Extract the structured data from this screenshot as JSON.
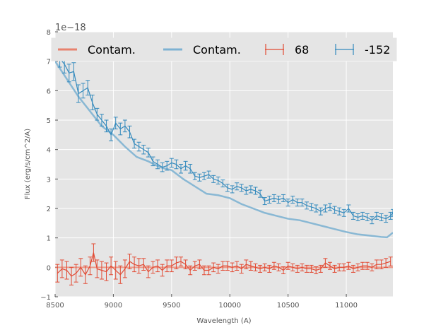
{
  "chart_data": {
    "type": "line",
    "title": "",
    "xlabel": "Wavelength (A)",
    "ylabel": "Flux (erg/s/cm^2/A)",
    "offset_text": "1e−18",
    "xlim": [
      8500,
      11400
    ],
    "ylim": [
      -1,
      8
    ],
    "xticks": [
      8500,
      9000,
      9500,
      10000,
      10500,
      11000
    ],
    "yticks": [
      -1,
      0,
      1,
      2,
      3,
      4,
      5,
      6,
      7,
      8
    ],
    "grid": true,
    "legend_position": "top",
    "legend": [
      {
        "label": "Contam.",
        "kind": "line",
        "color": "#e8826e"
      },
      {
        "label": "Contam.",
        "kind": "line",
        "color": "#7eb2d2"
      },
      {
        "label": "68",
        "kind": "errorbar",
        "color": "#e24a33"
      },
      {
        "label": "-152",
        "kind": "errorbar",
        "color": "#348abd"
      }
    ],
    "series": [
      {
        "name": "Contam.",
        "role": "contam_red",
        "color": "#e8826e",
        "x": [
          8500,
          11400
        ],
        "y": [
          0.0,
          0.0
        ]
      },
      {
        "name": "Contam.",
        "role": "contam_blue",
        "color": "#7eb2d2",
        "x": [
          8500,
          8600,
          8700,
          8800,
          8900,
          9000,
          9100,
          9200,
          9300,
          9400,
          9500,
          9600,
          9700,
          9800,
          9900,
          10000,
          10100,
          10200,
          10300,
          10400,
          10500,
          10600,
          10700,
          10800,
          10900,
          11000,
          11100,
          11200,
          11300,
          11350,
          11400
        ],
        "y": [
          7.0,
          6.4,
          5.8,
          5.3,
          4.8,
          4.5,
          4.1,
          3.75,
          3.6,
          3.4,
          3.3,
          3.0,
          2.75,
          2.5,
          2.45,
          2.35,
          2.15,
          2.0,
          1.85,
          1.75,
          1.65,
          1.6,
          1.5,
          1.4,
          1.3,
          1.2,
          1.12,
          1.08,
          1.03,
          1.02,
          1.18
        ]
      },
      {
        "name": "68",
        "role": "data_red",
        "color": "#e24a33",
        "x": [
          8520,
          8560,
          8600,
          8640,
          8680,
          8720,
          8760,
          8800,
          8830,
          8860,
          8900,
          8940,
          8980,
          9020,
          9060,
          9100,
          9140,
          9180,
          9220,
          9260,
          9300,
          9340,
          9380,
          9420,
          9460,
          9500,
          9540,
          9580,
          9620,
          9660,
          9700,
          9740,
          9780,
          9820,
          9860,
          9900,
          9940,
          9980,
          10020,
          10060,
          10100,
          10140,
          10180,
          10220,
          10260,
          10300,
          10340,
          10380,
          10420,
          10460,
          10500,
          10540,
          10580,
          10620,
          10660,
          10700,
          10740,
          10780,
          10820,
          10860,
          10900,
          10940,
          10980,
          11020,
          11060,
          11100,
          11140,
          11180,
          11220,
          11260,
          11300,
          11340,
          11380
        ],
        "y": [
          -0.2,
          -0.05,
          -0.1,
          -0.3,
          -0.2,
          0.0,
          -0.25,
          0.05,
          0.5,
          -0.05,
          -0.1,
          -0.15,
          0.05,
          -0.1,
          -0.25,
          -0.05,
          0.2,
          0.1,
          0.05,
          0.1,
          -0.15,
          0.0,
          0.05,
          -0.1,
          0.05,
          0.05,
          0.15,
          0.2,
          0.1,
          -0.1,
          0.05,
          0.1,
          -0.1,
          -0.1,
          0.0,
          -0.05,
          0.05,
          0.05,
          0.0,
          0.05,
          -0.05,
          0.1,
          0.05,
          0.0,
          -0.05,
          0.0,
          -0.05,
          0.05,
          0.0,
          -0.1,
          0.05,
          0.0,
          -0.05,
          0.0,
          -0.05,
          -0.05,
          -0.1,
          -0.05,
          0.15,
          0.05,
          -0.05,
          0.0,
          0.0,
          0.05,
          -0.05,
          0.0,
          0.05,
          0.05,
          0.0,
          0.1,
          0.1,
          0.15,
          0.2
        ],
        "err": [
          0.3,
          0.3,
          0.3,
          0.3,
          0.3,
          0.3,
          0.3,
          0.3,
          0.3,
          0.3,
          0.3,
          0.3,
          0.3,
          0.3,
          0.3,
          0.3,
          0.25,
          0.25,
          0.25,
          0.2,
          0.2,
          0.2,
          0.2,
          0.2,
          0.2,
          0.2,
          0.2,
          0.15,
          0.15,
          0.15,
          0.15,
          0.15,
          0.15,
          0.15,
          0.15,
          0.15,
          0.15,
          0.15,
          0.15,
          0.15,
          0.15,
          0.15,
          0.15,
          0.12,
          0.12,
          0.12,
          0.12,
          0.12,
          0.12,
          0.12,
          0.12,
          0.12,
          0.12,
          0.12,
          0.12,
          0.12,
          0.12,
          0.12,
          0.15,
          0.12,
          0.12,
          0.12,
          0.12,
          0.12,
          0.12,
          0.12,
          0.12,
          0.12,
          0.12,
          0.15,
          0.15,
          0.15,
          0.15
        ]
      },
      {
        "name": "-152",
        "role": "data_blue",
        "color": "#348abd",
        "x": [
          8540,
          8580,
          8620,
          8660,
          8700,
          8740,
          8780,
          8820,
          8860,
          8900,
          8940,
          8980,
          9020,
          9060,
          9100,
          9140,
          9180,
          9220,
          9260,
          9300,
          9340,
          9380,
          9420,
          9460,
          9500,
          9540,
          9580,
          9620,
          9660,
          9700,
          9740,
          9780,
          9820,
          9860,
          9900,
          9940,
          9980,
          10020,
          10060,
          10100,
          10140,
          10180,
          10220,
          10260,
          10300,
          10340,
          10380,
          10420,
          10460,
          10500,
          10540,
          10580,
          10620,
          10660,
          10700,
          10740,
          10780,
          10820,
          10860,
          10900,
          10940,
          10980,
          11020,
          11060,
          11100,
          11140,
          11180,
          11220,
          11260,
          11300,
          11340,
          11380,
          11400
        ],
        "y": [
          7.1,
          6.9,
          6.6,
          6.65,
          5.9,
          6.0,
          6.1,
          5.6,
          5.2,
          5.0,
          4.8,
          4.5,
          4.9,
          4.7,
          4.8,
          4.6,
          4.2,
          4.1,
          4.0,
          3.9,
          3.6,
          3.5,
          3.4,
          3.45,
          3.55,
          3.5,
          3.35,
          3.45,
          3.35,
          3.1,
          3.05,
          3.1,
          3.15,
          3.0,
          2.95,
          2.85,
          2.7,
          2.65,
          2.75,
          2.7,
          2.6,
          2.65,
          2.6,
          2.5,
          2.25,
          2.3,
          2.35,
          2.3,
          2.35,
          2.2,
          2.3,
          2.2,
          2.2,
          2.1,
          2.05,
          2.0,
          1.9,
          2.0,
          2.05,
          1.95,
          1.9,
          1.85,
          2.0,
          1.75,
          1.7,
          1.75,
          1.7,
          1.6,
          1.75,
          1.7,
          1.65,
          1.75,
          1.85
        ],
        "err": [
          0.3,
          0.3,
          0.3,
          0.3,
          0.3,
          0.25,
          0.25,
          0.25,
          0.2,
          0.2,
          0.2,
          0.2,
          0.2,
          0.2,
          0.2,
          0.2,
          0.15,
          0.15,
          0.15,
          0.15,
          0.15,
          0.15,
          0.15,
          0.15,
          0.15,
          0.15,
          0.15,
          0.15,
          0.15,
          0.12,
          0.12,
          0.12,
          0.12,
          0.12,
          0.12,
          0.12,
          0.12,
          0.12,
          0.12,
          0.12,
          0.12,
          0.12,
          0.12,
          0.12,
          0.12,
          0.12,
          0.12,
          0.12,
          0.12,
          0.12,
          0.12,
          0.12,
          0.12,
          0.12,
          0.12,
          0.12,
          0.12,
          0.12,
          0.12,
          0.12,
          0.12,
          0.12,
          0.12,
          0.12,
          0.12,
          0.12,
          0.12,
          0.12,
          0.12,
          0.12,
          0.12,
          0.12,
          0.12
        ]
      }
    ]
  }
}
